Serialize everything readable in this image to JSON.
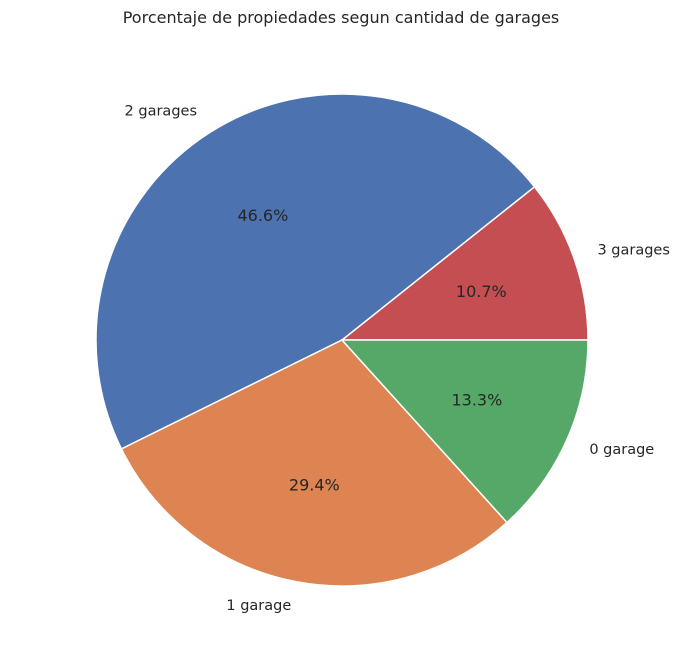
{
  "chart_data": {
    "type": "pie",
    "title": "Porcentaje de propiedades segun cantidad de garages",
    "slices": [
      {
        "label": "3 garages",
        "value": 10.7,
        "pct_label": "10.7%",
        "color": "#c44e52"
      },
      {
        "label": "2 garages",
        "value": 46.6,
        "pct_label": "46.6%",
        "color": "#4c72b0"
      },
      {
        "label": "1 garage",
        "value": 29.4,
        "pct_label": "29.4%",
        "color": "#dd8452"
      },
      {
        "label": "0 garage",
        "value": 13.3,
        "pct_label": "13.3%",
        "color": "#55a868"
      }
    ],
    "start_angle": 0,
    "direction": "counterclockwise",
    "legend": "none"
  }
}
